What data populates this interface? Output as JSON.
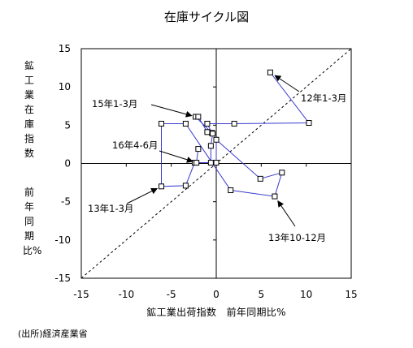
{
  "chart_data": {
    "type": "scatter",
    "title": "在庫サイクル図",
    "xlabel": "鉱工業出荷指数　前年同期比%",
    "ylabel_part1": "鉱工業在庫指数",
    "ylabel_part2": "前年同期比%",
    "xlim": [
      -15,
      15
    ],
    "ylim": [
      -15,
      15
    ],
    "xticks": [
      -15,
      -10,
      -5,
      0,
      5,
      10,
      15
    ],
    "yticks": [
      -15,
      -10,
      -5,
      0,
      5,
      10,
      15
    ],
    "grid": false,
    "diagonal_reference_line": true,
    "series": [
      {
        "x": [
          6.0,
          10.3,
          2.0,
          -1.0,
          -0.5,
          -2.3,
          -2.0,
          -1.0,
          -0.4,
          -0.6,
          -0.6,
          -2.4,
          -3.4,
          -6.1,
          -6.1,
          -3.4,
          1.6,
          6.5,
          7.3,
          4.9,
          0.0,
          0.0,
          -2.2,
          -2.0
        ],
        "y": [
          11.9,
          5.3,
          5.2,
          5.2,
          4.0,
          6.1,
          6.1,
          4.1,
          3.9,
          2.3,
          0.1,
          0.1,
          -2.9,
          -3.0,
          5.2,
          5.2,
          -3.5,
          -4.3,
          -1.2,
          -2.0,
          3.1,
          0.1,
          0.1,
          1.9
        ]
      }
    ],
    "annotations": [
      {
        "text": "12年1-3月",
        "point_index": 0
      },
      {
        "text": "13年1-3月",
        "point_index": 13
      },
      {
        "text": "13年10-12月",
        "point_index": 17
      },
      {
        "text": "15年1-3月",
        "point_index": 5
      },
      {
        "text": "16年4-6月",
        "point_index": 22
      }
    ]
  },
  "source": "(出所)経済産業省",
  "colors": {
    "line": "#3a3ad0",
    "marker_fill": "#ffffff",
    "marker_stroke": "#000000"
  }
}
